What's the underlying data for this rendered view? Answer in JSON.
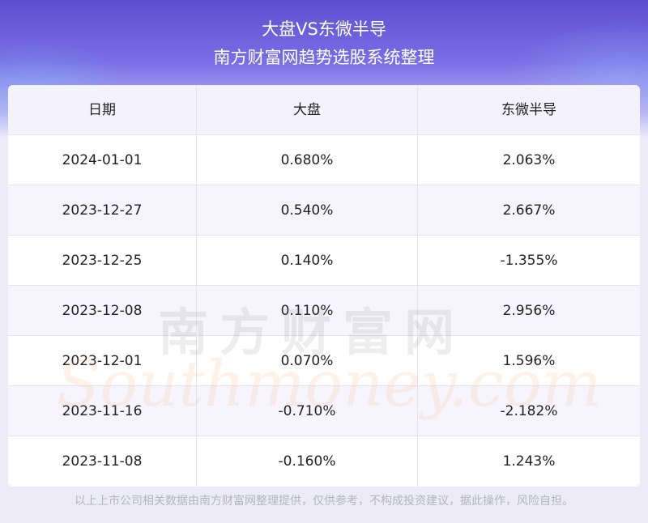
{
  "header": {
    "title_line1": "大盘VS东微半导",
    "title_line2": "南方财富网趋势选股系统整理"
  },
  "table": {
    "columns": [
      "日期",
      "大盘",
      "东微半导"
    ],
    "rows": [
      [
        "2024-01-01",
        "0.680%",
        "2.063%"
      ],
      [
        "2023-12-27",
        "0.540%",
        "2.667%"
      ],
      [
        "2023-12-25",
        "0.140%",
        "-1.355%"
      ],
      [
        "2023-12-08",
        "0.110%",
        "2.956%"
      ],
      [
        "2023-12-01",
        "0.070%",
        "1.596%"
      ],
      [
        "2023-11-16",
        "-0.710%",
        "-2.182%"
      ],
      [
        "2023-11-08",
        "-0.160%",
        "1.243%"
      ]
    ]
  },
  "watermark": {
    "cn": "南方财富网",
    "en": "Southmoney.com"
  },
  "footer": {
    "disclaimer": "以上上市公司相关数据由南方财富网整理提供，仅供参考，不构成投资建议，据此操作，风险自担。"
  },
  "colors": {
    "header_top": "#5b4fcf",
    "page_bg": "#ecebf7",
    "row_alt": "#f6f5fd"
  }
}
